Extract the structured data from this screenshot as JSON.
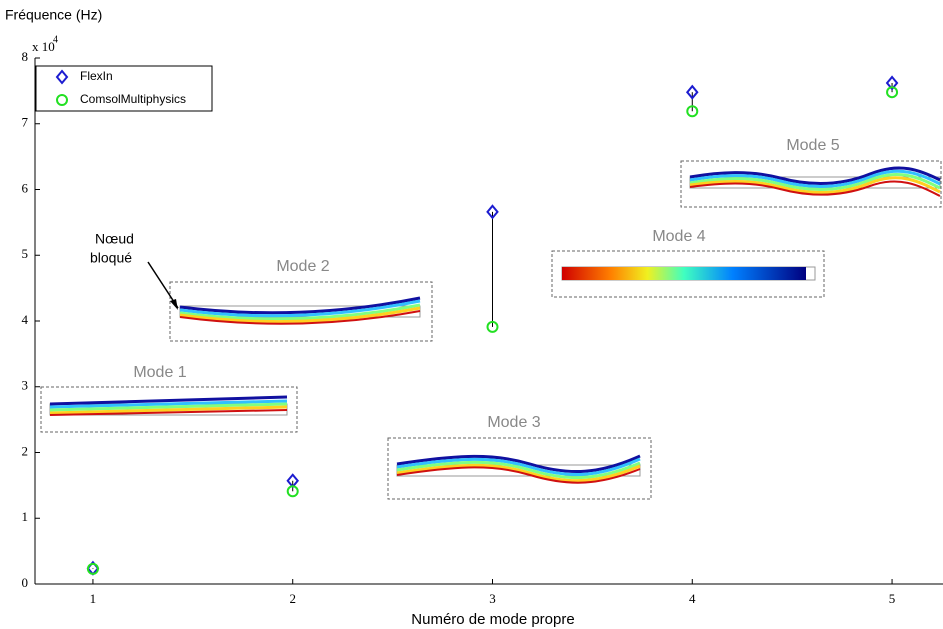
{
  "chart_data": {
    "type": "scatter",
    "y_label": "Fréquence (Hz)",
    "x_label": "Numéro de mode propre",
    "multiplier_base": "x 10",
    "multiplier_exponent": "4",
    "x": [
      1,
      2,
      3,
      4,
      5
    ],
    "series": [
      {
        "name": "FlexIn",
        "color": "#1c1cd0",
        "marker": "diamond",
        "values": [
          0.24,
          1.57,
          5.66,
          7.48,
          7.62
        ]
      },
      {
        "name": "ComsolMultiphysics",
        "color": "#22e022",
        "marker": "circle",
        "values": [
          0.23,
          1.41,
          3.91,
          7.19,
          7.48
        ]
      }
    ],
    "xlim": [
      0.71,
      5.255
    ],
    "xticks": [
      1,
      2,
      3,
      4,
      5
    ],
    "ylim": [
      0,
      8
    ],
    "yticks": [
      0,
      1,
      2,
      3,
      4,
      5,
      6,
      7,
      8
    ],
    "legend": "upper left",
    "mode_labels": [
      "Mode 1",
      "Mode 2",
      "Mode 3",
      "Mode 4",
      "Mode 5"
    ],
    "annotation_lines": [
      "Nœud",
      "bloqué"
    ]
  }
}
